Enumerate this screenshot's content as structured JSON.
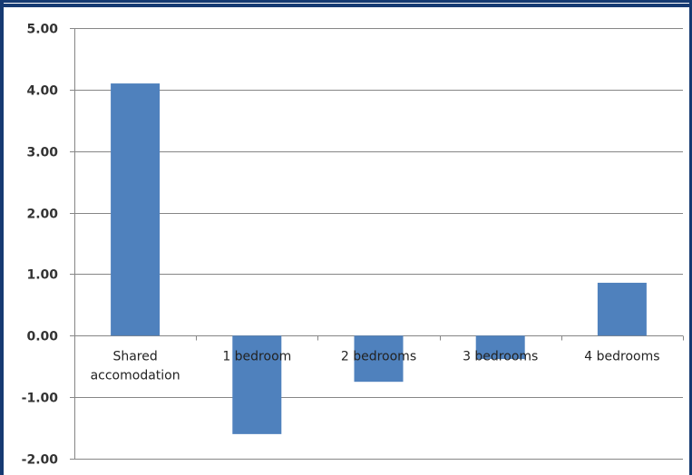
{
  "chart_data": {
    "type": "bar",
    "categories": [
      "Shared accomodation",
      "1 bedroom",
      "2 bedrooms",
      "3 bedrooms",
      "4 bedrooms"
    ],
    "category_label_lines": [
      [
        "Shared",
        "accomodation"
      ],
      [
        "1 bedroom"
      ],
      [
        "2 bedrooms"
      ],
      [
        "3 bedrooms"
      ],
      [
        "4 bedrooms"
      ]
    ],
    "values": [
      4.1,
      -1.6,
      -0.75,
      -0.38,
      0.86
    ],
    "ylim": [
      -2,
      5
    ],
    "yticks": [
      5,
      4,
      3,
      2,
      1,
      0,
      -1,
      -2
    ],
    "ytick_labels": [
      "5.00",
      "4.00",
      "3.00",
      "2.00",
      "1.00",
      "0.00",
      "-1.00",
      "-2.00"
    ],
    "title": "",
    "xlabel": "",
    "ylabel": "",
    "grid": true,
    "legend": "none",
    "bar_color": "#4f81bd",
    "grid_color": "#868686",
    "frame_color": "#163a72"
  }
}
